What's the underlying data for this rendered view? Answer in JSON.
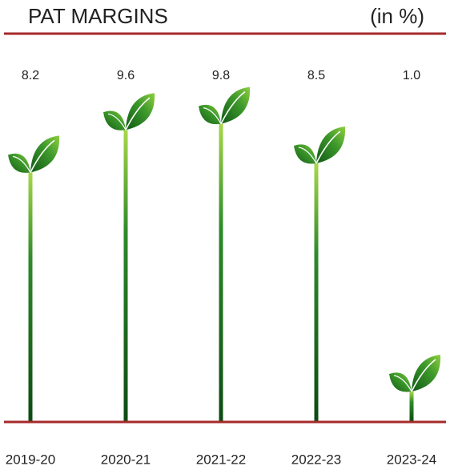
{
  "chart_data": {
    "type": "pictograph-bar",
    "title": "PAT MARGINS",
    "unit_label": "(in %)",
    "categories": [
      "2019-20",
      "2020-21",
      "2021-22",
      "2022-23",
      "2023-24"
    ],
    "values": [
      8.2,
      9.6,
      9.8,
      8.5,
      1.0
    ],
    "value_labels": [
      "8.2",
      "9.6",
      "9.8",
      "8.5",
      "1.0"
    ],
    "ylim": [
      0,
      12
    ],
    "color": "#2e7d1f",
    "rule_color": "#a52a2a"
  }
}
